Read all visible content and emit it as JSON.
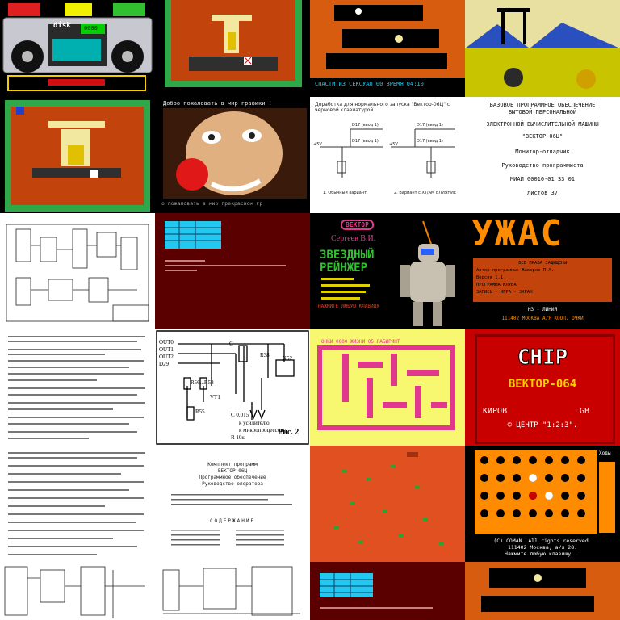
{
  "colors": {
    "game_bg": "#c2440c",
    "floor": "#2f2f2f",
    "pattern_a": "#f2e8a0",
    "pattern_b": "#2fa84a",
    "cave": "#d85c10",
    "yellow_bg": "#c8c400",
    "cream": "#f4f1d0",
    "dark_red": "#5a0000",
    "magenta": "#e0388c",
    "chip_red": "#c80000",
    "orange": "#ff8c00",
    "cyan_panel": "#22c8f0"
  },
  "tiles": {
    "r0c0": {
      "name": "disk-player",
      "label": "disk",
      "counter": "0000"
    },
    "r0c2": {
      "name": "cave-game",
      "status": "СПАСТИ ИЗ СЕКСУАЛ 00 ВРЕМЯ 04:10"
    },
    "r1c1": {
      "name": "clown-picture",
      "top": "Добро пожаловать в мир графики !",
      "bottom": "о пожаловать в мир прекрасном гр"
    },
    "r1c2": {
      "name": "circuit-diagram",
      "title": "Доработка для нормального запуска \"Вектор-06Ц\" с черновой клавиатурой",
      "labels": [
        "D17 (ввод 1)",
        "D17 (ввод 1)",
        "D17 (ввод 1)",
        "D17 (ввод 1)",
        "+5V",
        "+5V"
      ],
      "caption_a": "1. Обычный вариант",
      "caption_b": "2. Вариант с ХТ/АМ ВЛИЯНИЕ"
    },
    "r1c3": {
      "name": "document-title-page",
      "lines": [
        "БАЗОВОЕ ПРОГРАММНОЕ ОБЕСПЕЧЕНИЕ",
        "БЫТОВОЙ ПЕРСОНАЛЬНОЙ",
        "ЭЛЕКТРОННОЙ ВЫЧИСЛИТЕЛЬНОЙ МАШИНЫ",
        "\"ВЕКТОР-06Ц\"",
        "Монитор-отладчик",
        "Руководство программиста",
        "МИАИ 00010-01 33 01",
        "листов 37"
      ]
    },
    "r2c2": {
      "name": "star-ranger",
      "badge": "ВЕКТОР",
      "author": "Сергеев В.И.",
      "title_a": "ЗВЕЗДНЫЙ",
      "title_b": "РЕЙНЖЕР",
      "footer": "НАЖМИТЕ ЛЮБУЮ КЛАВИШУ"
    },
    "r2c3": {
      "name": "horror-title",
      "title": "УЖАС",
      "lines": [
        "ВСЕ ПРАВА ЗАЩИЩЕНЫ",
        "Автор программы: Жаворов П.А.",
        "Версия 1.1",
        "ПРОГРАММА КЛУБА",
        "ЗАПИСЬ - ИГРА - ЭКРАН"
      ],
      "bottom_a": "НЗ - ЛИНИЯ",
      "bottom_b": "111402 МОСКВА А/Я КООП. ОЧКИ"
    },
    "r3c1": {
      "name": "schematic-fig2",
      "labels": [
        "OUT0",
        "OUT1",
        "OUT2",
        "D29",
        "R56...R58",
        "C",
        "VT1",
        "R55",
        "R38",
        "X52",
        "к усилителю",
        "к микропроцессору",
        "C 0.015",
        "R 10к"
      ],
      "caption": "Рис. 2"
    },
    "r3c2": {
      "name": "maze-game",
      "header": "ОЧКИ 0000  ЖИЗНИ 05  ЛАБИРИНТ"
    },
    "r3c3": {
      "name": "chip-title",
      "logo": "CHIP",
      "subtitle": "ВЕКТОР-064",
      "left": "КИРОВ",
      "right": "LGB",
      "copyright": "© ЦЕНТР \"1:2:3\"."
    },
    "r4c1": {
      "name": "document-contents",
      "lines": [
        "Комплект программ",
        "ВЕКТОР-06Ц",
        "Программное обеспечение",
        "Руководство оператора"
      ],
      "section": "СОДЕРЖАНИЕ"
    },
    "r4c3": {
      "name": "reversi-board",
      "side": "Ходы",
      "footer_a": "(C) COMAN. All rights reserved.",
      "footer_b": "111402 Москва, а/я 28.",
      "footer_c": "Нажмите любую клавишу..."
    }
  }
}
